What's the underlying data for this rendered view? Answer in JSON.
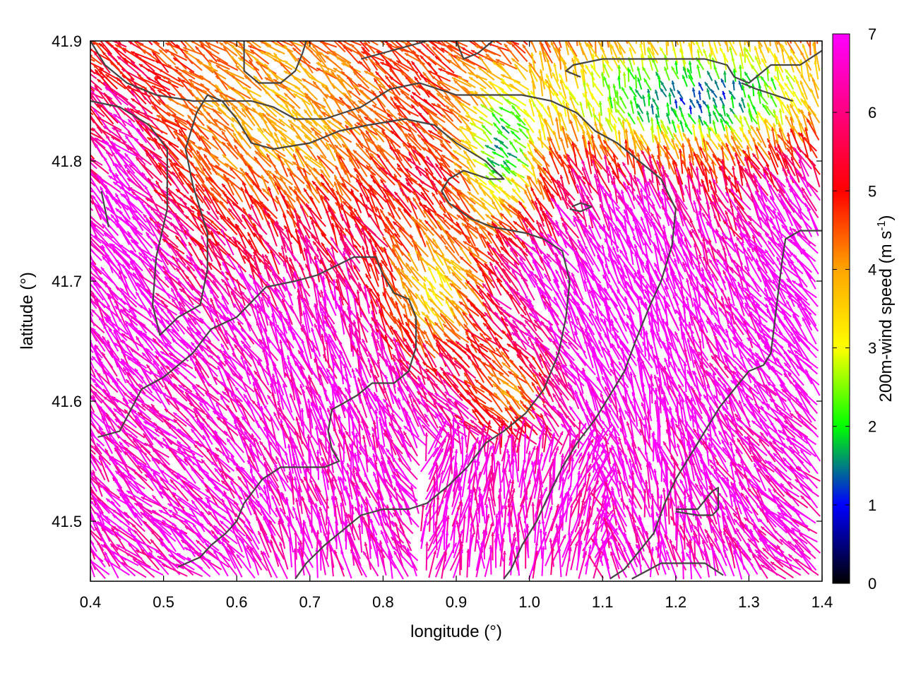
{
  "chart_data": {
    "type": "vector-field",
    "xlabel": "longitude (°)",
    "ylabel": "latitude (°)",
    "xlim": [
      0.4,
      1.4
    ],
    "ylim": [
      41.45,
      41.9
    ],
    "x_ticks": [
      0.4,
      0.5,
      0.6,
      0.7,
      0.8,
      0.9,
      1.0,
      1.1,
      1.2,
      1.3,
      1.4
    ],
    "x_tick_labels": [
      "0.4",
      "0.5",
      "0.6",
      "0.7",
      "0.8",
      "0.9",
      "1.0",
      "1.1",
      "1.2",
      "1.3",
      "1.4"
    ],
    "y_ticks": [
      41.5,
      41.6,
      41.7,
      41.8,
      41.9
    ],
    "y_tick_labels": [
      "41.5",
      "41.6",
      "41.7",
      "41.8",
      "41.9"
    ],
    "colorbar": {
      "label_main": "200m-wind speed (m s",
      "label_sup": "-1",
      "label_end": ")",
      "range": [
        0,
        7
      ],
      "ticks": [
        0,
        1,
        2,
        3,
        4,
        5,
        6,
        7
      ],
      "tick_labels": [
        "0",
        "1",
        "2",
        "3",
        "4",
        "5",
        "6",
        "7"
      ],
      "colors": [
        "#000000",
        "#0000ff",
        "#00ff00",
        "#ffff00",
        "#ffa500",
        "#ff0000",
        "#ff00ff"
      ]
    },
    "contour_color": "#444444",
    "contours": [
      [
        [
          0.4,
          41.85
        ],
        [
          0.44,
          41.845
        ],
        [
          0.48,
          41.83
        ],
        [
          0.505,
          41.81
        ],
        [
          0.505,
          41.76
        ],
        [
          0.49,
          41.72
        ],
        [
          0.485,
          41.68
        ],
        [
          0.495,
          41.655
        ],
        [
          0.52,
          41.67
        ],
        [
          0.535,
          41.675
        ],
        [
          0.55,
          41.68
        ],
        [
          0.56,
          41.71
        ],
        [
          0.56,
          41.74
        ],
        [
          0.54,
          41.78
        ],
        [
          0.53,
          41.81
        ],
        [
          0.545,
          41.84
        ],
        [
          0.56,
          41.855
        ],
        [
          0.58,
          41.85
        ],
        [
          0.6,
          41.835
        ],
        [
          0.62,
          41.815
        ],
        [
          0.65,
          41.81
        ],
        [
          0.7,
          41.815
        ],
        [
          0.74,
          41.825
        ],
        [
          0.78,
          41.83
        ],
        [
          0.83,
          41.835
        ],
        [
          0.87,
          41.83
        ],
        [
          0.9,
          41.815
        ],
        [
          0.94,
          41.8
        ],
        [
          0.965,
          41.785
        ],
        [
          0.945,
          41.785
        ],
        [
          0.91,
          41.792
        ],
        [
          0.89,
          41.785
        ],
        [
          0.88,
          41.775
        ],
        [
          0.89,
          41.765
        ],
        [
          0.92,
          41.752
        ],
        [
          0.95,
          41.745
        ],
        [
          0.995,
          41.74
        ],
        [
          1.02,
          41.735
        ],
        [
          1.045,
          41.725
        ],
        [
          1.055,
          41.7
        ],
        [
          1.05,
          41.67
        ],
        [
          1.04,
          41.64
        ],
        [
          1.02,
          41.61
        ],
        [
          0.995,
          41.59
        ],
        [
          0.965,
          41.575
        ],
        [
          0.94,
          41.565
        ],
        [
          0.915,
          41.545
        ],
        [
          0.89,
          41.53
        ],
        [
          0.86,
          41.515
        ],
        [
          0.835,
          41.51
        ],
        [
          0.8,
          41.51
        ],
        [
          0.77,
          41.505
        ],
        [
          0.74,
          41.49
        ],
        [
          0.72,
          41.48
        ],
        [
          0.695,
          41.465
        ],
        [
          0.68,
          41.452
        ]
      ],
      [
        [
          0.41,
          41.57
        ],
        [
          0.44,
          41.575
        ],
        [
          0.47,
          41.61
        ],
        [
          0.5,
          41.62
        ],
        [
          0.54,
          41.64
        ],
        [
          0.565,
          41.66
        ],
        [
          0.6,
          41.67
        ],
        [
          0.64,
          41.695
        ],
        [
          0.68,
          41.7
        ],
        [
          0.71,
          41.705
        ],
        [
          0.76,
          41.72
        ],
        [
          0.79,
          41.72
        ],
        [
          0.8,
          41.705
        ],
        [
          0.815,
          41.69
        ],
        [
          0.835,
          41.685
        ],
        [
          0.845,
          41.67
        ],
        [
          0.845,
          41.645
        ],
        [
          0.835,
          41.625
        ],
        [
          0.815,
          41.615
        ],
        [
          0.785,
          41.615
        ],
        [
          0.765,
          41.605
        ],
        [
          0.745,
          41.598
        ],
        [
          0.73,
          41.593
        ],
        [
          0.725,
          41.575
        ],
        [
          0.73,
          41.56
        ],
        [
          0.74,
          41.55
        ],
        [
          0.72,
          41.545
        ],
        [
          0.69,
          41.545
        ],
        [
          0.66,
          41.545
        ],
        [
          0.635,
          41.535
        ],
        [
          0.61,
          41.515
        ],
        [
          0.6,
          41.5
        ],
        [
          0.585,
          41.49
        ],
        [
          0.565,
          41.48
        ],
        [
          0.55,
          41.47
        ],
        [
          0.52,
          41.462
        ]
      ],
      [
        [
          0.4,
          41.9
        ],
        [
          0.42,
          41.88
        ],
        [
          0.45,
          41.865
        ],
        [
          0.49,
          41.855
        ],
        [
          0.54,
          41.85
        ],
        [
          0.58,
          41.85
        ],
        [
          0.62,
          41.85
        ],
        [
          0.65,
          41.845
        ],
        [
          0.68,
          41.835
        ],
        [
          0.72,
          41.835
        ],
        [
          0.77,
          41.845
        ],
        [
          0.81,
          41.86
        ],
        [
          0.85,
          41.865
        ],
        [
          0.9,
          41.855
        ],
        [
          0.95,
          41.855
        ],
        [
          0.99,
          41.855
        ],
        [
          1.03,
          41.85
        ],
        [
          1.065,
          41.84
        ],
        [
          1.09,
          41.825
        ],
        [
          1.12,
          41.815
        ],
        [
          1.15,
          41.8
        ],
        [
          1.18,
          41.785
        ],
        [
          1.2,
          41.76
        ],
        [
          1.195,
          41.73
        ],
        [
          1.18,
          41.7
        ],
        [
          1.165,
          41.68
        ],
        [
          1.145,
          41.65
        ],
        [
          1.13,
          41.625
        ],
        [
          1.11,
          41.605
        ],
        [
          1.09,
          41.585
        ],
        [
          1.065,
          41.565
        ],
        [
          1.045,
          41.545
        ],
        [
          1.025,
          41.52
        ],
        [
          1.01,
          41.5
        ],
        [
          0.99,
          41.48
        ],
        [
          0.975,
          41.46
        ],
        [
          0.965,
          41.452
        ]
      ],
      [
        [
          1.42,
          41.9
        ],
        [
          1.37,
          41.88
        ],
        [
          1.33,
          41.88
        ],
        [
          1.3,
          41.865
        ],
        [
          1.28,
          41.87
        ],
        [
          1.27,
          41.88
        ],
        [
          1.24,
          41.885
        ],
        [
          1.2,
          41.885
        ],
        [
          1.17,
          41.885
        ],
        [
          1.14,
          41.885
        ],
        [
          1.1,
          41.885
        ],
        [
          1.06,
          41.88
        ],
        [
          1.05,
          41.875
        ],
        [
          1.07,
          41.87
        ]
      ],
      [
        [
          0.61,
          41.9
        ],
        [
          0.61,
          41.875
        ],
        [
          0.63,
          41.865
        ],
        [
          0.66,
          41.865
        ],
        [
          0.68,
          41.875
        ],
        [
          0.69,
          41.89
        ],
        [
          0.695,
          41.9
        ]
      ],
      [
        [
          0.77,
          41.885
        ],
        [
          0.8,
          41.89
        ],
        [
          0.83,
          41.895
        ],
        [
          0.86,
          41.9
        ]
      ],
      [
        [
          0.9,
          41.9
        ],
        [
          0.91,
          41.885
        ],
        [
          0.93,
          41.89
        ],
        [
          0.95,
          41.9
        ]
      ],
      [
        [
          1.29,
          41.865
        ],
        [
          1.31,
          41.86
        ],
        [
          1.335,
          41.855
        ],
        [
          1.36,
          41.85
        ]
      ],
      [
        [
          1.4,
          41.742
        ],
        [
          1.37,
          41.742
        ],
        [
          1.35,
          41.735
        ],
        [
          1.345,
          41.715
        ],
        [
          1.34,
          41.69
        ],
        [
          1.335,
          41.665
        ],
        [
          1.33,
          41.64
        ],
        [
          1.32,
          41.63
        ],
        [
          1.3,
          41.625
        ],
        [
          1.28,
          41.61
        ],
        [
          1.26,
          41.595
        ],
        [
          1.245,
          41.58
        ],
        [
          1.23,
          41.565
        ],
        [
          1.215,
          41.55
        ],
        [
          1.2,
          41.535
        ],
        [
          1.185,
          41.515
        ],
        [
          1.17,
          41.49
        ],
        [
          1.15,
          41.475
        ],
        [
          1.13,
          41.46
        ],
        [
          1.11,
          41.452
        ]
      ],
      [
        [
          1.14,
          41.452
        ],
        [
          1.18,
          41.465
        ],
        [
          1.22,
          41.465
        ],
        [
          1.24,
          41.465
        ],
        [
          1.265,
          41.455
        ]
      ],
      [
        [
          1.2,
          41.51
        ],
        [
          1.23,
          41.51
        ],
        [
          1.25,
          41.525
        ],
        [
          1.258,
          41.528
        ],
        [
          1.258,
          41.51
        ],
        [
          1.25,
          41.505
        ],
        [
          1.23,
          41.505
        ],
        [
          1.2,
          41.508
        ]
      ],
      [
        [
          1.055,
          41.76
        ],
        [
          1.07,
          41.758
        ],
        [
          1.085,
          41.762
        ],
        [
          1.07,
          41.765
        ],
        [
          1.058,
          41.762
        ]
      ],
      [
        [
          0.415,
          41.775
        ],
        [
          0.42,
          41.76
        ],
        [
          0.425,
          41.745
        ]
      ]
    ],
    "field_description": "Dense 200m wind vector field, mostly northward/north-westward flow with magenta (>6.5 m/s) in the south, red/orange mid domain and weak multicolor winds in the north-east"
  }
}
